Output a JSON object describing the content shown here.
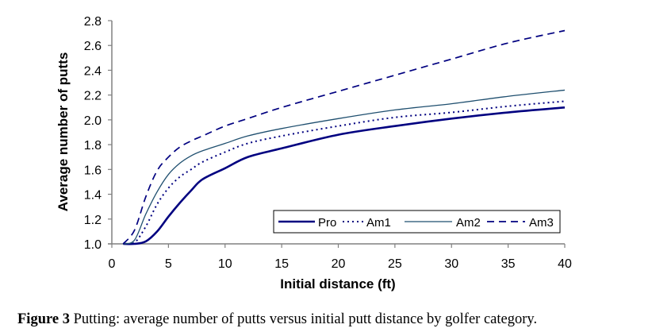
{
  "chart_data": {
    "type": "line",
    "title": "",
    "xlabel": "Initial distance (ft)",
    "ylabel": "Average number of putts",
    "xlim": [
      0,
      40
    ],
    "ylim": [
      1.0,
      2.8
    ],
    "xticks": [
      "0",
      "5",
      "10",
      "15",
      "20",
      "25",
      "30",
      "35",
      "40"
    ],
    "yticks": [
      "1.0",
      "1.2",
      "1.4",
      "1.6",
      "1.8",
      "2.0",
      "2.2",
      "2.4",
      "2.6",
      "2.8"
    ],
    "grid": false,
    "legend_position": "bottom-right",
    "x": [
      1,
      2,
      3,
      4,
      5,
      6,
      7,
      8,
      10,
      12,
      15,
      20,
      25,
      30,
      35,
      40
    ],
    "series": [
      {
        "name": "Pro",
        "style": "solid-thick",
        "color": "#000080",
        "values": [
          1.0,
          1.0,
          1.02,
          1.1,
          1.22,
          1.33,
          1.43,
          1.52,
          1.61,
          1.7,
          1.77,
          1.88,
          1.95,
          2.01,
          2.06,
          2.1
        ]
      },
      {
        "name": "Am1",
        "style": "dotted",
        "color": "#000080",
        "values": [
          1.0,
          1.01,
          1.14,
          1.32,
          1.45,
          1.54,
          1.6,
          1.66,
          1.74,
          1.81,
          1.87,
          1.95,
          2.02,
          2.06,
          2.11,
          2.15
        ]
      },
      {
        "name": "Am2",
        "style": "solid-thin",
        "color": "#1f4f6f",
        "values": [
          1.0,
          1.03,
          1.24,
          1.42,
          1.56,
          1.65,
          1.71,
          1.75,
          1.81,
          1.87,
          1.93,
          2.01,
          2.08,
          2.13,
          2.19,
          2.24
        ]
      },
      {
        "name": "Am3",
        "style": "dashed",
        "color": "#000080",
        "values": [
          1.0,
          1.11,
          1.38,
          1.59,
          1.7,
          1.78,
          1.83,
          1.87,
          1.95,
          2.01,
          2.1,
          2.23,
          2.36,
          2.49,
          2.62,
          2.72
        ]
      }
    ]
  },
  "caption": {
    "label": "Figure 3",
    "text": " Putting: average number of putts versus initial putt distance by golfer category."
  }
}
